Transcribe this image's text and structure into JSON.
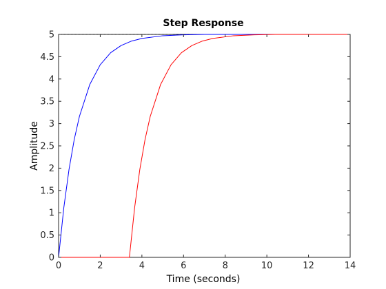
{
  "chart_data": {
    "type": "line",
    "title": "Step Response",
    "xlabel": "Time (seconds)",
    "ylabel": "Amplitude",
    "xlim": [
      0,
      14
    ],
    "ylim": [
      0,
      5
    ],
    "xticks": [
      0,
      2,
      4,
      6,
      8,
      10,
      12,
      14
    ],
    "xtick_labels": [
      "0",
      "2",
      "4",
      "6",
      "8",
      "10",
      "12",
      "14"
    ],
    "yticks": [
      0,
      0.5,
      1,
      1.5,
      2,
      2.5,
      3,
      3.5,
      4,
      4.5,
      5
    ],
    "ytick_labels": [
      "0",
      "0.5",
      "1",
      "1.5",
      "2",
      "2.5",
      "3",
      "3.5",
      "4",
      "4.5",
      "5"
    ],
    "grid": false,
    "steady_state_reference": {
      "y": 5,
      "color": "#000000",
      "style": "dotted"
    },
    "series": [
      {
        "color": "#0000ff",
        "x": [
          0,
          0.25,
          0.5,
          0.75,
          1,
          1.5,
          2,
          2.5,
          3,
          3.5,
          4,
          5,
          6,
          7,
          8,
          9,
          9.2,
          10,
          12,
          14
        ],
        "y": [
          0,
          1.11,
          1.97,
          2.64,
          3.16,
          3.88,
          4.32,
          4.59,
          4.75,
          4.85,
          4.91,
          4.97,
          4.99,
          5.0,
          5.0,
          5.0,
          5.0,
          5.0,
          5.0,
          5.0
        ]
      },
      {
        "color": "#ff0000",
        "x": [
          0,
          3.4,
          3.65,
          3.9,
          4.15,
          4.4,
          4.9,
          5.4,
          5.9,
          6.4,
          6.9,
          7.4,
          8.4,
          9.4,
          10.4,
          12,
          14
        ],
        "y": [
          0,
          0,
          1.11,
          1.97,
          2.64,
          3.16,
          3.88,
          4.32,
          4.59,
          4.75,
          4.85,
          4.91,
          4.97,
          4.99,
          5.0,
          5.0,
          5.0
        ]
      }
    ]
  }
}
